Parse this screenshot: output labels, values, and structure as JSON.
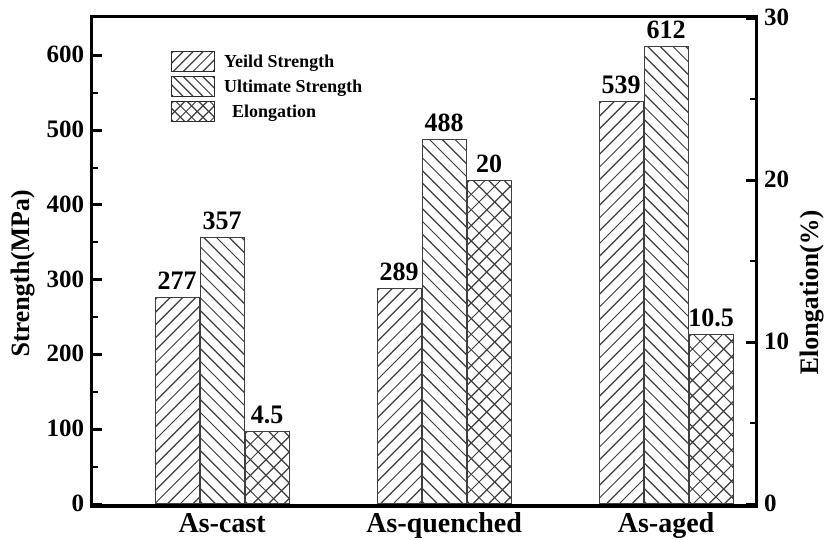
{
  "figure": {
    "background": "#ffffff"
  },
  "chart_data": {
    "type": "bar",
    "categories": [
      "As-cast",
      "As-quenched",
      "As-aged"
    ],
    "series": [
      {
        "name": "Yeild Strength",
        "axis": "left",
        "hatch": "forward-diagonal",
        "values": [
          277,
          289,
          539
        ]
      },
      {
        "name": "Ultimate Strength",
        "axis": "left",
        "hatch": "backward-diagonal",
        "values": [
          357,
          488,
          612
        ]
      },
      {
        "name": "Elongation",
        "axis": "right",
        "hatch": "cross-diagonal",
        "values": [
          4.5,
          20,
          10.5
        ]
      }
    ],
    "title": "",
    "xlabel": "",
    "ylabel_left": "Strength(MPa)",
    "ylabel_right": "Elongation(%)",
    "ylim_left": [
      0,
      650
    ],
    "ylim_right": [
      0,
      30
    ],
    "left_major_ticks": [
      0,
      100,
      200,
      300,
      400,
      500,
      600
    ],
    "right_major_ticks": [
      0,
      10,
      20,
      30
    ],
    "left_minor_step": 50,
    "right_minor_step": 5,
    "bar_value_labels_shown": true,
    "grid": false,
    "legend_position": "upper-left",
    "colors": {
      "background": "#ffffff",
      "frame": "#000000",
      "text": "#000000",
      "hatch_line": "#3f3f3f",
      "bar_border": "#3f3f3f",
      "bar_fill": "#ffffff"
    }
  }
}
